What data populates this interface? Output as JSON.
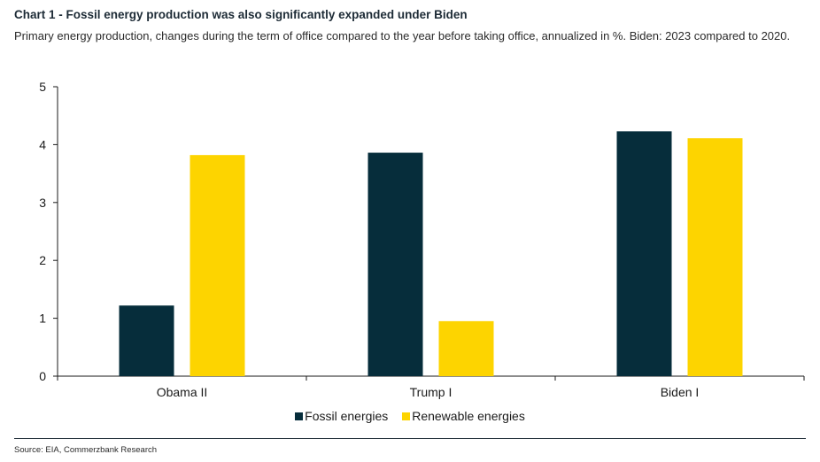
{
  "header": {
    "title": "Chart 1 - Fossil energy production was also significantly expanded under Biden",
    "subtitle": "Primary energy production, changes during the term of office compared to the year before taking office, annualized in %. Biden: 2023 compared to 2020."
  },
  "footer": {
    "source": "Source: EIA, Commerzbank Research"
  },
  "colors": {
    "fossil": "#062d3b",
    "renewable": "#fdd400"
  },
  "chart_data": {
    "type": "bar",
    "categories": [
      "Obama II",
      "Trump I",
      "Biden I"
    ],
    "series": [
      {
        "name": "Fossil energies",
        "values": [
          1.22,
          3.86,
          4.23
        ]
      },
      {
        "name": "Renewable energies",
        "values": [
          3.82,
          0.95,
          4.11
        ]
      }
    ],
    "ylim": [
      0,
      5
    ],
    "yticks": [
      0,
      1,
      2,
      3,
      4,
      5
    ],
    "grid": false,
    "legend": "bottom"
  }
}
